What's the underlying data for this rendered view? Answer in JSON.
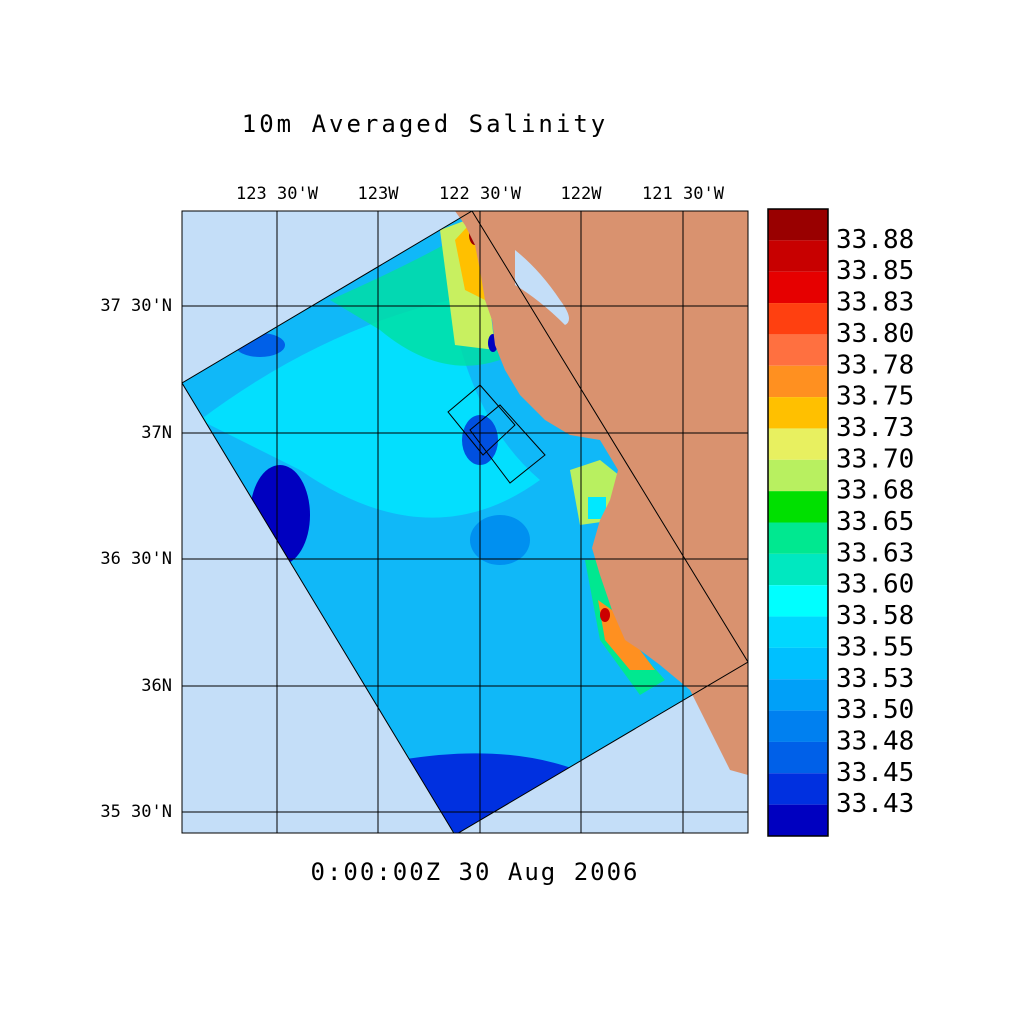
{
  "title": "10m Averaged Salinity",
  "lon_labels": [
    "123 30'W",
    "123W",
    "122 30'W",
    "122W",
    "121 30'W"
  ],
  "lat_labels": [
    "37 30'N",
    "37N",
    "36 30'N",
    "36N",
    "35 30'N"
  ],
  "timestamp": "0:00:00Z  30 Aug 2006",
  "colorbar": {
    "labels": [
      "33.88",
      "33.85",
      "33.83",
      "33.80",
      "33.78",
      "33.75",
      "33.73",
      "33.70",
      "33.68",
      "33.65",
      "33.63",
      "33.60",
      "33.58",
      "33.55",
      "33.53",
      "33.50",
      "33.48",
      "33.45",
      "33.43"
    ],
    "colors": [
      "#990000",
      "#c80000",
      "#e60000",
      "#ff4010",
      "#ff7040",
      "#ff9020",
      "#ffc000",
      "#e8f060",
      "#b8f060",
      "#00e000",
      "#00e890",
      "#00e8c0",
      "#00ffff",
      "#00d8ff",
      "#00c0ff",
      "#00a0f8",
      "#0080f0",
      "#0060e8",
      "#0030e0",
      "#0000c0"
    ]
  }
}
